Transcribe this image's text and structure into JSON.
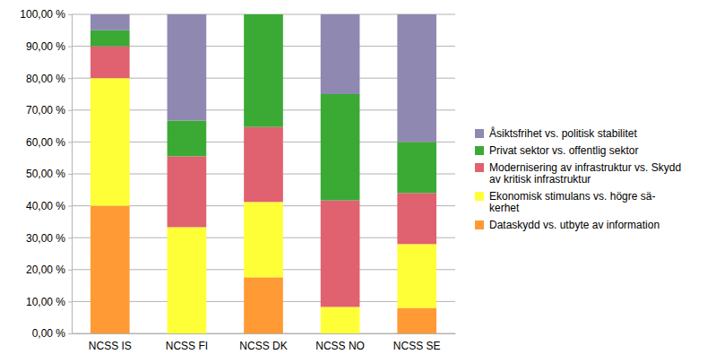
{
  "chart_data": {
    "type": "bar",
    "stacked": true,
    "grid": true,
    "legend": "right",
    "categories": [
      "NCSS IS",
      "NCSS FI",
      "NCSS DK",
      "NCSS NO",
      "NCSS SE"
    ],
    "ylim": [
      0,
      100
    ],
    "yticks": [
      {
        "value": 0,
        "label": "0,00 %"
      },
      {
        "value": 10,
        "label": "10,00 %"
      },
      {
        "value": 20,
        "label": "20,00 %"
      },
      {
        "value": 30,
        "label": "30,00 %"
      },
      {
        "value": 40,
        "label": "40,00 %"
      },
      {
        "value": 50,
        "label": "50,00 %"
      },
      {
        "value": 60,
        "label": "60,00 %"
      },
      {
        "value": 70,
        "label": "70,00 %"
      },
      {
        "value": 80,
        "label": "80,00 %"
      },
      {
        "value": 90,
        "label": "90,00 %"
      },
      {
        "value": 100,
        "label": "100,00 %"
      }
    ],
    "series": [
      {
        "name": "Dataskydd vs. utbyte av information",
        "color": "#ff9a35",
        "values": [
          40,
          0,
          17.6,
          0,
          8
        ]
      },
      {
        "name": "Ekonomisk stimulans vs. högre sä-\nkerhet",
        "color": "#ffff38",
        "values": [
          40,
          33.3,
          23.6,
          8.3,
          20
        ]
      },
      {
        "name": "Modernisering av infrastruktur vs. Skydd\nav kritisk infrastruktur",
        "color": "#e0616f",
        "values": [
          10,
          22.2,
          23.5,
          33.4,
          16
        ]
      },
      {
        "name": "Privat sektor vs. offentlig sektor",
        "color": "#3aaa35",
        "values": [
          5,
          11.2,
          35.3,
          33.3,
          16
        ]
      },
      {
        "name": "Åsiktsfrihet vs. politisk stabilitet",
        "color": "#8f88b0",
        "values": [
          5,
          33.3,
          0,
          25,
          40
        ]
      }
    ]
  }
}
